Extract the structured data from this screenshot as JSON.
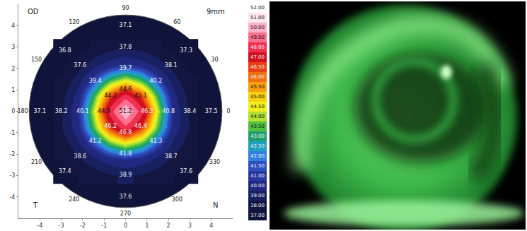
{
  "chart_data": {
    "type": "topography",
    "labels": {
      "eye": "OD",
      "zone": "9mm",
      "temporal": "T",
      "nasal": "N"
    },
    "xlim": [
      -5,
      5
    ],
    "ylim": [
      -5,
      5
    ],
    "xticks": [
      -4,
      -3,
      -2,
      -1,
      0,
      1,
      2,
      3,
      4
    ],
    "yticks": [
      -4,
      -3,
      -2,
      -1,
      0,
      1,
      2,
      3,
      4
    ],
    "disk_radius": 4.5,
    "angle_labels": [
      0,
      30,
      60,
      90,
      120,
      150,
      180,
      210,
      240,
      270,
      300,
      330
    ],
    "data_labels": true,
    "points": [
      {
        "angle": 0,
        "r": 0,
        "value": 51.2
      },
      {
        "angle": 0,
        "r": 1,
        "value": 46.3
      },
      {
        "angle": 45,
        "r": 1,
        "value": 45.1
      },
      {
        "angle": 90,
        "r": 1,
        "value": 44.6
      },
      {
        "angle": 135,
        "r": 1,
        "value": 44.2
      },
      {
        "angle": 180,
        "r": 1,
        "value": 44.9
      },
      {
        "angle": 225,
        "r": 1,
        "value": 46.2
      },
      {
        "angle": 270,
        "r": 1,
        "value": 46.8
      },
      {
        "angle": 315,
        "r": 1,
        "value": 46.4
      },
      {
        "angle": 0,
        "r": 2,
        "value": 40.8
      },
      {
        "angle": 45,
        "r": 2,
        "value": 40.2
      },
      {
        "angle": 90,
        "r": 2,
        "value": 39.7
      },
      {
        "angle": 135,
        "r": 2,
        "value": 39.4
      },
      {
        "angle": 180,
        "r": 2,
        "value": 40.1
      },
      {
        "angle": 225,
        "r": 2,
        "value": 41.2
      },
      {
        "angle": 270,
        "r": 2,
        "value": 41.8
      },
      {
        "angle": 315,
        "r": 2,
        "value": 41.3
      },
      {
        "angle": 0,
        "r": 3,
        "value": 38.4
      },
      {
        "angle": 45,
        "r": 3,
        "value": 38.1
      },
      {
        "angle": 90,
        "r": 3,
        "value": 37.8
      },
      {
        "angle": 135,
        "r": 3,
        "value": 37.6
      },
      {
        "angle": 180,
        "r": 3,
        "value": 38.2
      },
      {
        "angle": 225,
        "r": 3,
        "value": 38.6
      },
      {
        "angle": 270,
        "r": 3,
        "value": 38.9
      },
      {
        "angle": 315,
        "r": 3,
        "value": 38.7
      },
      {
        "angle": 0,
        "r": 4,
        "value": 37.5
      },
      {
        "angle": 45,
        "r": 4,
        "value": 37.3
      },
      {
        "angle": 90,
        "r": 4,
        "value": 37.1
      },
      {
        "angle": 135,
        "r": 4,
        "value": 36.8
      },
      {
        "angle": 180,
        "r": 4,
        "value": 37.1
      },
      {
        "angle": 225,
        "r": 4,
        "value": 37.4
      },
      {
        "angle": 270,
        "r": 4,
        "value": 37.6
      },
      {
        "angle": 315,
        "r": 4,
        "value": 37.6
      }
    ],
    "field": {
      "x": [
        -3,
        -2.25,
        -1.5,
        -0.75,
        0,
        0.75,
        1.5,
        2.25,
        3
      ],
      "y": [
        -3,
        -2.25,
        -1.5,
        -0.75,
        0,
        0.75,
        1.5,
        2.25,
        3
      ],
      "z": [
        [
          37.6,
          38.0,
          38.4,
          38.9,
          39.1,
          38.9,
          38.4,
          38.0,
          37.6
        ],
        [
          38.0,
          38.7,
          39.7,
          40.6,
          41.1,
          40.6,
          39.7,
          38.7,
          38.0
        ],
        [
          38.4,
          39.7,
          41.7,
          43.7,
          44.7,
          43.7,
          41.7,
          39.7,
          38.4
        ],
        [
          38.9,
          40.6,
          43.7,
          46.9,
          48.7,
          46.9,
          43.7,
          40.6,
          38.9
        ],
        [
          38.8,
          40.8,
          44.4,
          48.4,
          51.2,
          48.4,
          44.4,
          40.8,
          38.8
        ],
        [
          38.6,
          40.3,
          43.4,
          46.6,
          48.4,
          46.6,
          43.4,
          40.3,
          38.6
        ],
        [
          38.1,
          39.4,
          41.4,
          43.4,
          44.4,
          43.4,
          41.4,
          39.4,
          38.1
        ],
        [
          37.7,
          38.4,
          39.4,
          40.3,
          40.8,
          40.3,
          39.4,
          38.4,
          37.7
        ],
        [
          37.3,
          37.7,
          38.1,
          38.6,
          38.8,
          38.6,
          38.1,
          37.7,
          37.3
        ]
      ]
    },
    "color_scale": {
      "levels": [
        {
          "value": 52,
          "label": "52.00",
          "color": "#ffffff"
        },
        {
          "value": 51,
          "label": "51.00",
          "color": "#ffe6ef"
        },
        {
          "value": 50,
          "label": "50.00",
          "color": "#ffb0c8"
        },
        {
          "value": 49,
          "label": "49.00",
          "color": "#ff7090"
        },
        {
          "value": 48,
          "label": "48.00",
          "color": "#f03050"
        },
        {
          "value": 47,
          "label": "47.00",
          "color": "#d01020"
        },
        {
          "value": 46.5,
          "label": "46.50",
          "color": "#e84010"
        },
        {
          "value": 46,
          "label": "46.00",
          "color": "#f07010"
        },
        {
          "value": 45.5,
          "label": "45.50",
          "color": "#f8a010"
        },
        {
          "value": 45,
          "label": "45.00",
          "color": "#f8d010"
        },
        {
          "value": 44.5,
          "label": "44.50",
          "color": "#f0f020"
        },
        {
          "value": 44,
          "label": "44.00",
          "color": "#b0e030"
        },
        {
          "value": 43.5,
          "label": "43.50",
          "color": "#50c040"
        },
        {
          "value": 43,
          "label": "43.00",
          "color": "#20a070"
        },
        {
          "value": 42.5,
          "label": "42.50",
          "color": "#20a0c0"
        },
        {
          "value": 42,
          "label": "42.00",
          "color": "#3080e0"
        },
        {
          "value": 41.5,
          "label": "41.50",
          "color": "#3050c0"
        },
        {
          "value": 41,
          "label": "41.00",
          "color": "#2838a0"
        },
        {
          "value": 40,
          "label": "40.00",
          "color": "#202880"
        },
        {
          "value": 39,
          "label": "39.00",
          "color": "#182060"
        },
        {
          "value": 38,
          "label": "38.00",
          "color": "#121640"
        },
        {
          "value": 37,
          "label": "37.00",
          "color": "#10143a"
        }
      ]
    }
  }
}
